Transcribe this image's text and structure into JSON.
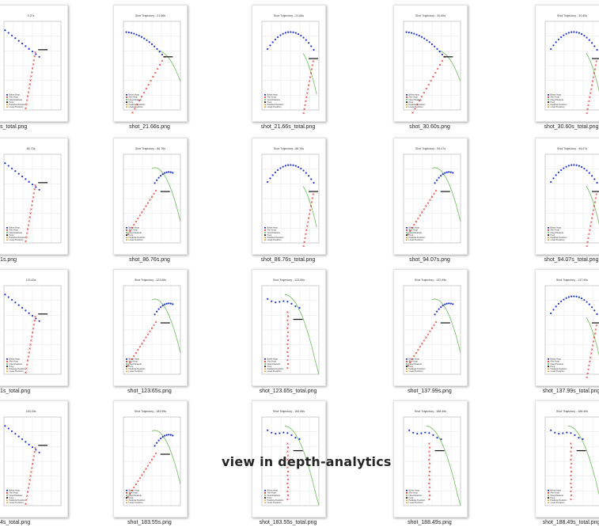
{
  "overlay_text": "view in depth-analytics",
  "legend_labels": [
    "Before Hoop",
    "After Hoop",
    "Fitted Parabola",
    "Hoop",
    "Parabola Prediction",
    "Linear Prediction"
  ],
  "colors": {
    "before_hoop": "#2233cc",
    "after_hoop": "#e0302a",
    "fitted_parabola": "#6bbf59",
    "hoop": "#111111",
    "grid": "#e6e6e6"
  },
  "rows": [
    [
      {
        "file": "s_total.png",
        "title": "9.27s",
        "shape": "cutL"
      },
      {
        "file": "shot_21.66s.png",
        "title": "Shot Trajectory - 21.66s",
        "shape": "desc"
      },
      {
        "file": "shot_21.66s_total.png",
        "title": "Shot Trajectory - 21.66s",
        "shape": "arc"
      },
      {
        "file": "shot_30.60s.png",
        "title": "Shot Trajectory - 30.60s",
        "shape": "desc"
      },
      {
        "file": "shot_30.60s_total.png",
        "title": "Shot Trajectory - 30.60s",
        "shape": "arc"
      }
    ],
    [
      {
        "file": "1s.png",
        "title": "86.73s",
        "shape": "cutL"
      },
      {
        "file": "shot_86.76s.png",
        "title": "Shot Trajectory - 86.76s",
        "shape": "rise"
      },
      {
        "file": "shot_86.76s_total.png",
        "title": "Shot Trajectory - 86.76s",
        "shape": "arc"
      },
      {
        "file": "shot_94.07s.png",
        "title": "Shot Trajectory - 94.07s",
        "shape": "rise"
      },
      {
        "file": "shot_94.07s_total.png",
        "title": "Shot Trajectory - 94.07s",
        "shape": "arc"
      }
    ],
    [
      {
        "file": "1s_total.png",
        "title": "123.63s",
        "shape": "cutL"
      },
      {
        "file": "shot_123.65s.png",
        "title": "Shot Trajectory - 123.65s",
        "shape": "rise"
      },
      {
        "file": "shot_123.65s_total.png",
        "title": "Shot Trajectory - 123.65s",
        "shape": "drop"
      },
      {
        "file": "shot_137.99s.png",
        "title": "Shot Trajectory - 137.99s",
        "shape": "rise"
      },
      {
        "file": "shot_137.99s_total.png",
        "title": "Shot Trajectory - 137.99s",
        "shape": "arc"
      }
    ],
    [
      {
        "file": "4s_total.png",
        "title": "183.53s",
        "shape": "cutL"
      },
      {
        "file": "shot_183.55s.png",
        "title": "Shot Trajectory - 183.55s",
        "shape": "rise"
      },
      {
        "file": "shot_183.55s_total.png",
        "title": "Shot Trajectory - 183.55s",
        "shape": "drop"
      },
      {
        "file": "shot_188.49s.png",
        "title": "Shot Trajectory - 188.49s",
        "shape": "drop"
      },
      {
        "file": "shot_188.49s_total.png",
        "title": "Shot Trajectory - 188.49s",
        "shape": "drop"
      }
    ]
  ]
}
